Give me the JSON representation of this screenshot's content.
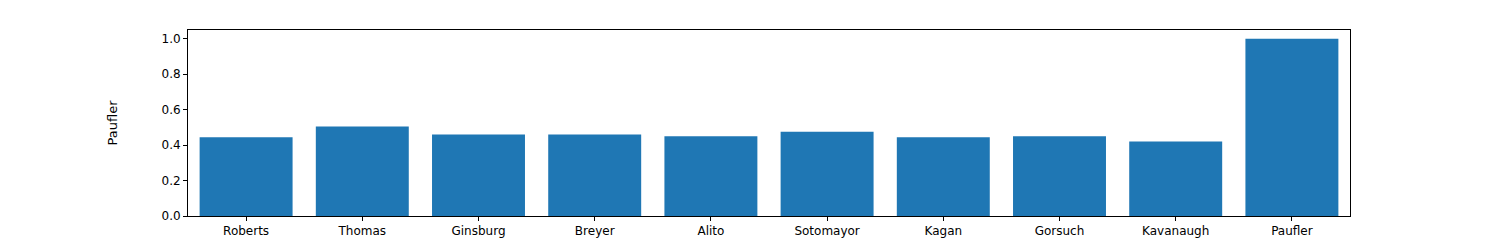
{
  "chart_data": {
    "type": "bar",
    "y_label": "Paufler",
    "categories": [
      "Roberts",
      "Thomas",
      "Ginsburg",
      "Breyer",
      "Alito",
      "Sotomayor",
      "Kagan",
      "Gorsuch",
      "Kavanaugh",
      "Paufler"
    ],
    "values": [
      0.445,
      0.505,
      0.46,
      0.46,
      0.45,
      0.475,
      0.445,
      0.45,
      0.42,
      1.0
    ],
    "color": "#1f77b4",
    "ylim": [
      0,
      1.05
    ],
    "yticks": [
      {
        "value": 0,
        "label": "0.0"
      },
      0.2,
      0.4,
      0.6,
      0.8,
      {
        "value": 1,
        "label": "1.0"
      }
    ],
    "grid": false
  }
}
